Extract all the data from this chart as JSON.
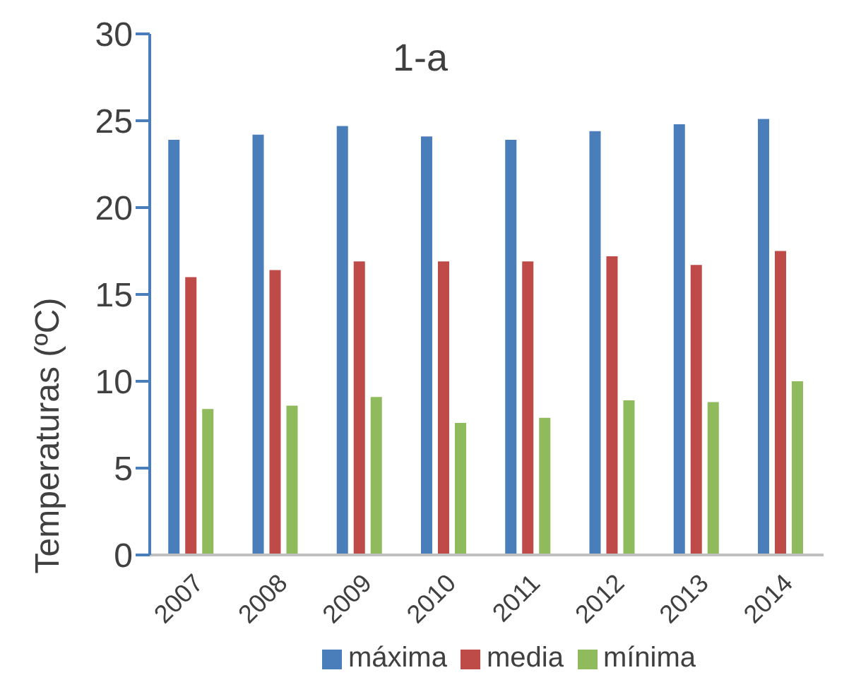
{
  "chart_data": {
    "type": "bar",
    "title": "1-a",
    "ylabel": "Temperaturas (ºC)",
    "categories": [
      "2007",
      "2008",
      "2009",
      "2010",
      "2011",
      "2012",
      "2013",
      "2014"
    ],
    "series": [
      {
        "name": "máxima",
        "color": "#4a7ebb",
        "values": [
          23.9,
          24.2,
          24.7,
          24.1,
          23.9,
          24.4,
          24.8,
          25.1
        ]
      },
      {
        "name": "media",
        "color": "#be4b48",
        "values": [
          16.0,
          16.4,
          16.9,
          16.9,
          16.9,
          17.2,
          16.7,
          17.5
        ]
      },
      {
        "name": "mínima",
        "color": "#8fbb5c",
        "values": [
          8.4,
          8.6,
          9.1,
          7.6,
          7.9,
          8.9,
          8.8,
          10.0
        ]
      }
    ],
    "ylim": [
      0,
      30
    ],
    "yticks": [
      0,
      5,
      10,
      15,
      20,
      25,
      30
    ],
    "grid": false,
    "legend": "bottom"
  }
}
